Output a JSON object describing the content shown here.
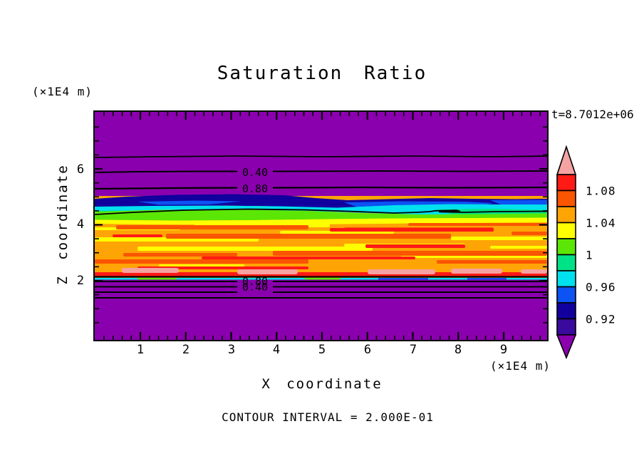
{
  "title": "Saturation Ratio",
  "timestamp": "t=8.7012e+06",
  "contour_note": "CONTOUR INTERVAL = 2.000E-01",
  "x_axis": {
    "label": "X coordinate",
    "unit": "(×1E4 m)",
    "tick_labels": [
      "1",
      "2",
      "3",
      "4",
      "5",
      "6",
      "7",
      "8",
      "9"
    ]
  },
  "z_axis": {
    "label": "Z coordinate",
    "unit": "(×1E4 m)",
    "tick_labels": [
      "6",
      "4",
      "2"
    ]
  },
  "contour_labels": {
    "upper": [
      "0.40",
      "0.80"
    ],
    "lower": [
      "0.80",
      "0.40"
    ]
  },
  "colorbar": {
    "tick_labels": [
      "1.08",
      "1.04",
      "1",
      "0.96",
      "0.92"
    ],
    "colors": [
      "#FF1A15",
      "#FA5500",
      "#FFA405",
      "#FFFF00",
      "#5CE605",
      "#00E287",
      "#00E0EE",
      "#0D52F2",
      "#12009E",
      "#3A0A9E"
    ],
    "arrow_top_color": "#F5A2A2",
    "arrow_bottom_color": "#8A00AE"
  },
  "chart_data": {
    "type": "heatmap",
    "title": "Saturation Ratio",
    "xlabel": "X coordinate",
    "ylabel": "Z coordinate",
    "axis_units": "×1E4 m",
    "xlim": [
      0,
      10
    ],
    "zlim": [
      0,
      8
    ],
    "x_ticks": [
      1,
      2,
      3,
      4,
      5,
      6,
      7,
      8,
      9
    ],
    "z_ticks": [
      2,
      4,
      6
    ],
    "time_label": "t=8.7012e+06",
    "contour_interval": 0.2,
    "labeled_contours": [
      0.4,
      0.8
    ],
    "colorbar": {
      "tick_values": [
        1.08,
        1.04,
        1.0,
        0.96,
        0.92
      ],
      "bin_width": 0.02,
      "block_range": [
        0.9,
        1.1
      ],
      "under_range_color": "#8A00AE",
      "over_range_color": "#F5A2A2"
    },
    "field_bands": [
      {
        "z_range": [
          5.0,
          8.0
        ],
        "value": "< 0.90",
        "description": "purple background; contour lines at ~0.20 (z≈6.45), 0.40 (z≈5.95, labeled), 0.80 (z≈5.40, labeled) cross this region"
      },
      {
        "z_range": [
          4.75,
          5.0
        ],
        "value": "0.92-0.96",
        "description": "dark navy / blue wavy band"
      },
      {
        "z_range": [
          4.55,
          4.75
        ],
        "value": "0.96-1.00",
        "description": "cyan / spring-green band, thicker toward right"
      },
      {
        "z_range": [
          4.35,
          4.55
        ],
        "value": "1.00-1.04",
        "description": "green and yellow band; 1.00 contour line runs along it"
      },
      {
        "z_range": [
          2.3,
          4.35
        ],
        "value": "1.04-1.10",
        "description": "broad orange band with horizontal streaks of yellow, orange-red and red"
      },
      {
        "z_range": [
          2.15,
          2.3
        ],
        "value": "1.08-1.12",
        "description": "red stripe with pale pink (>1.10) patches"
      },
      {
        "z_range": [
          2.0,
          2.15
        ],
        "value": "0.96-1.00",
        "description": "thin cyan/green/blue line, then sharp drop; contours 0.80 and 0.40 (labeled, overlapping) just below"
      },
      {
        "z_range": [
          0.0,
          2.0
        ],
        "value": "< 0.90",
        "description": "purple background below band; lowest contour line at z≈1.45"
      }
    ]
  }
}
